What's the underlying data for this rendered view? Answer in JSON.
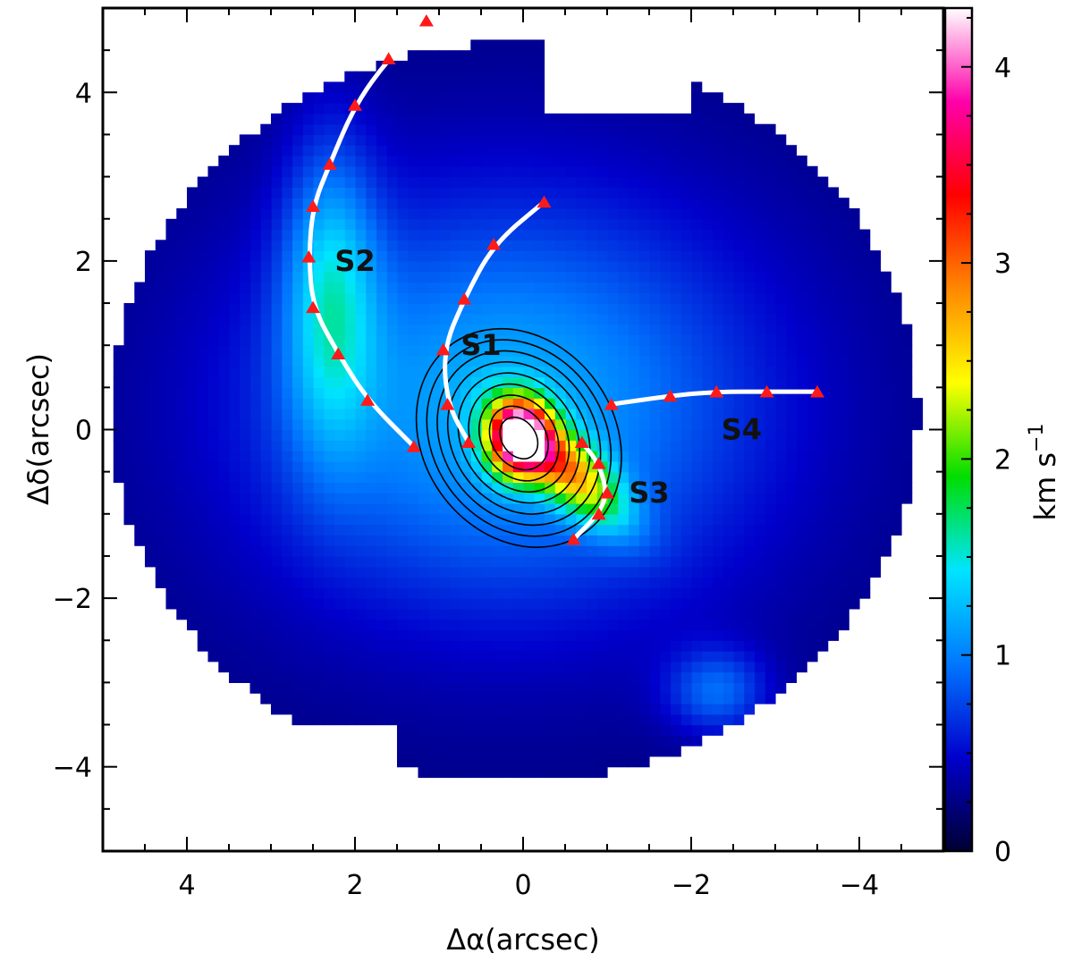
{
  "chart_data": {
    "type": "heatmap",
    "title": "",
    "xlabel": "Δα(arcsec)",
    "ylabel": "Δδ(arcsec)",
    "xlim": [
      5,
      -5
    ],
    "ylim": [
      -5,
      5
    ],
    "x_ticks": [
      4,
      2,
      0,
      -2,
      -4
    ],
    "x_tick_labels": [
      "4",
      "2",
      "0",
      "−2",
      "−4"
    ],
    "y_ticks": [
      4,
      2,
      0,
      -2,
      -4
    ],
    "y_tick_labels": [
      "4",
      "2",
      "0",
      "−2",
      "−4"
    ],
    "colorbar": {
      "label": "km s",
      "label_superscript": "−1",
      "range": [
        0,
        4.3
      ],
      "ticks": [
        0,
        1,
        2,
        3,
        4
      ],
      "tick_labels": [
        "0",
        "1",
        "2",
        "3",
        "4"
      ],
      "colormap": [
        "#000033",
        "#0000cc",
        "#0077ff",
        "#00e5ff",
        "#00dd00",
        "#ffff00",
        "#ff8800",
        "#ff0000",
        "#ff00aa",
        "#ffffff"
      ]
    },
    "streamers": [
      {
        "name": "S1",
        "label_pos": [
          0.5,
          1.0
        ],
        "points": [
          [
            0.65,
            -0.15
          ],
          [
            0.9,
            0.3
          ],
          [
            0.95,
            0.95
          ],
          [
            0.7,
            1.55
          ],
          [
            0.35,
            2.2
          ],
          [
            -0.25,
            2.7
          ]
        ]
      },
      {
        "name": "S2",
        "label_pos": [
          2.0,
          2.0
        ],
        "points": [
          [
            1.3,
            -0.2
          ],
          [
            1.85,
            0.35
          ],
          [
            2.2,
            0.9
          ],
          [
            2.5,
            1.45
          ],
          [
            2.55,
            2.05
          ],
          [
            2.5,
            2.65
          ],
          [
            2.3,
            3.15
          ],
          [
            2.0,
            3.85
          ],
          [
            1.6,
            4.4
          ],
          [
            1.15,
            4.85
          ]
        ]
      },
      {
        "name": "S3",
        "label_pos": [
          -1.5,
          -0.75
        ],
        "points": [
          [
            -0.7,
            -0.15
          ],
          [
            -0.9,
            -0.4
          ],
          [
            -1.0,
            -0.75
          ],
          [
            -0.9,
            -1.0
          ],
          [
            -0.6,
            -1.3
          ]
        ]
      },
      {
        "name": "S4",
        "label_pos": [
          -2.6,
          0.0
        ],
        "points": [
          [
            -1.05,
            0.3
          ],
          [
            -1.75,
            0.4
          ],
          [
            -2.3,
            0.45
          ],
          [
            -2.9,
            0.45
          ],
          [
            -3.5,
            0.45
          ]
        ]
      }
    ],
    "peak": {
      "x": 0.05,
      "y": -0.1,
      "value": 4.3
    }
  }
}
